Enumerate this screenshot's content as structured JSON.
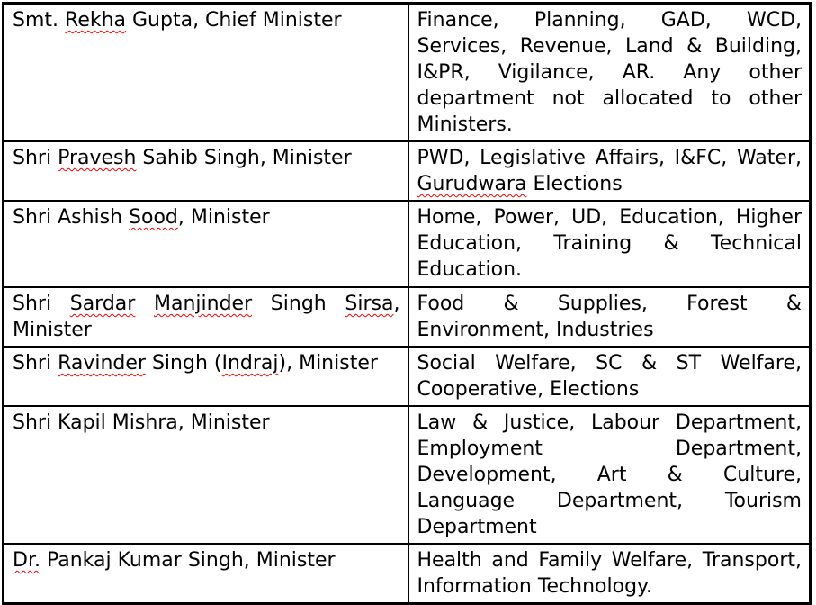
{
  "colors": {
    "background": "#ffffff",
    "text": "#000000",
    "border": "#000000",
    "spellcheck_underline": "#ff0000"
  },
  "table": {
    "description_columns": [
      "minister",
      "portfolios"
    ],
    "rows": [
      {
        "minister": {
          "text": "Smt. Rekha Gupta, Chief Minister",
          "misspelled": [
            "Rekha"
          ]
        },
        "portfolios": {
          "text": "Finance, Planning, GAD, WCD, Services, Revenue, Land & Building, I&PR, Vigilance, AR. Any other department not allocated to other Ministers.",
          "misspelled": []
        }
      },
      {
        "minister": {
          "text": "Shri Pravesh Sahib Singh, Minister",
          "misspelled": [
            "Pravesh"
          ]
        },
        "portfolios": {
          "text": "PWD, Legislative Affairs, I&FC, Water, Gurudwara Elections",
          "misspelled": [
            "Gurudwara"
          ]
        }
      },
      {
        "minister": {
          "text": "Shri Ashish Sood, Minister",
          "misspelled": [
            "Sood"
          ]
        },
        "portfolios": {
          "text": "Home, Power, UD, Education, Higher Education, Training & Technical Education.",
          "misspelled": []
        }
      },
      {
        "minister": {
          "text": "Shri Sardar Manjinder Singh Sirsa, Minister",
          "misspelled": [
            "Sardar",
            "Manjinder",
            "Sirsa"
          ]
        },
        "portfolios": {
          "text": "Food & Supplies, Forest & Environment, Industries",
          "misspelled": []
        }
      },
      {
        "minister": {
          "text": "Shri Ravinder Singh (Indraj), Minister",
          "misspelled": [
            "Ravinder",
            "Indraj"
          ]
        },
        "portfolios": {
          "text": "Social Welfare, SC & ST Welfare, Cooperative, Elections",
          "misspelled": []
        }
      },
      {
        "minister": {
          "text": "Shri Kapil Mishra, Minister",
          "misspelled": []
        },
        "portfolios": {
          "text": "Law & Justice, Labour Department, Employment Department, Development, Art & Culture, Language Department, Tourism Department",
          "misspelled": []
        }
      },
      {
        "minister": {
          "text": "Dr. Pankaj Kumar Singh, Minister",
          "misspelled": [
            "Dr."
          ]
        },
        "portfolios": {
          "text": "Health and Family Welfare, Transport, Information Technology.",
          "misspelled": []
        }
      }
    ]
  }
}
